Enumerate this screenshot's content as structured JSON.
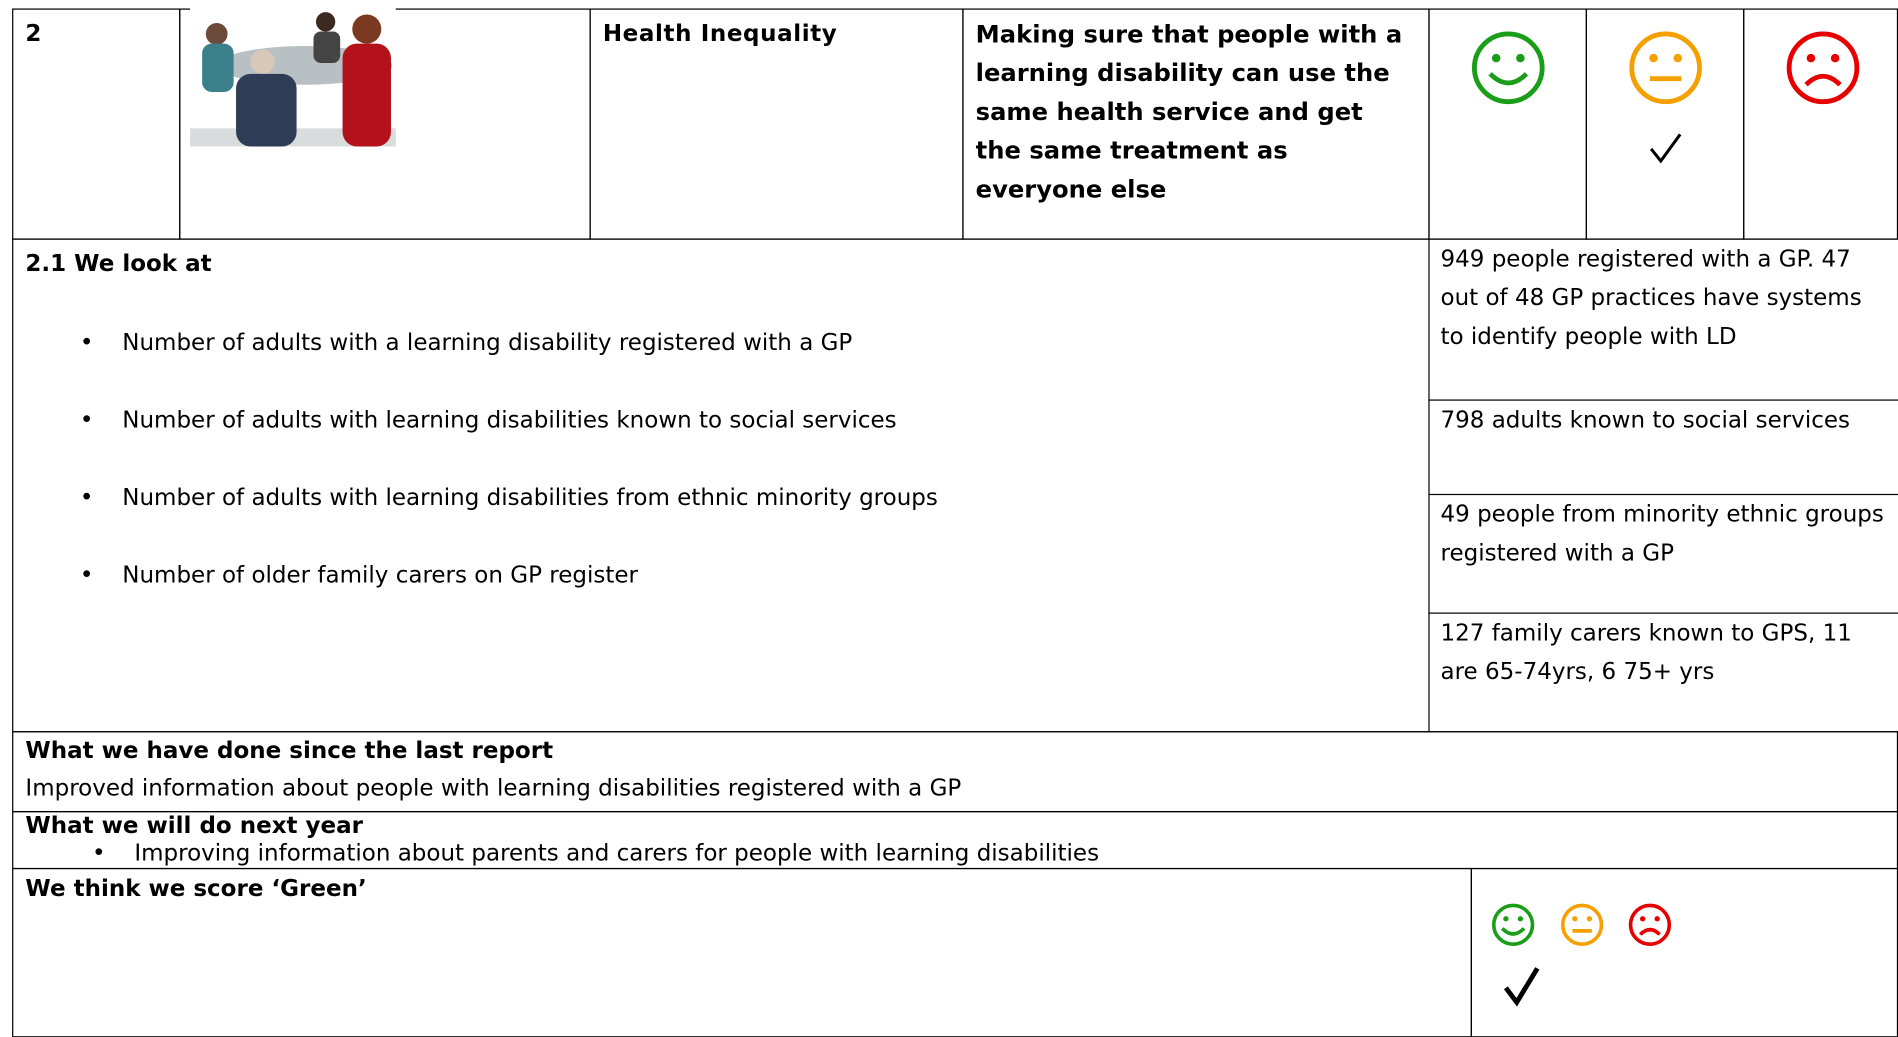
{
  "header": {
    "number": "2",
    "topic": "Health Inequality",
    "aim": "Making sure that people with a learning disability can use the same health service and get the same treatment as everyone else"
  },
  "look_at": {
    "heading": "2.1 We look at",
    "items": [
      {
        "measure": "Number of adults with a learning disability registered with a GP",
        "result": "949 people registered with a GP.  47 out of 48 GP practices have systems to identify people with LD"
      },
      {
        "measure": "Number of adults with learning disabilities known to social services",
        "result": "798 adults known to social services"
      },
      {
        "measure": "Number of adults with learning disabilities from ethnic minority groups",
        "result": "49 people from minority ethnic groups registered with a GP"
      },
      {
        "measure": "Number of older family carers on GP register",
        "result": "127 family carers known to GPS, 11 are 65-74yrs, 6 75+ yrs"
      }
    ]
  },
  "done": {
    "heading": "What we have done since the last report",
    "text": "Improved information about people with learning disabilities registered with a GP"
  },
  "next_year": {
    "heading": "What we will do next year",
    "items": [
      "Improving information about parents and carers for people with learning disabilities"
    ]
  },
  "score": {
    "heading": "We think we score ‘Green’"
  }
}
